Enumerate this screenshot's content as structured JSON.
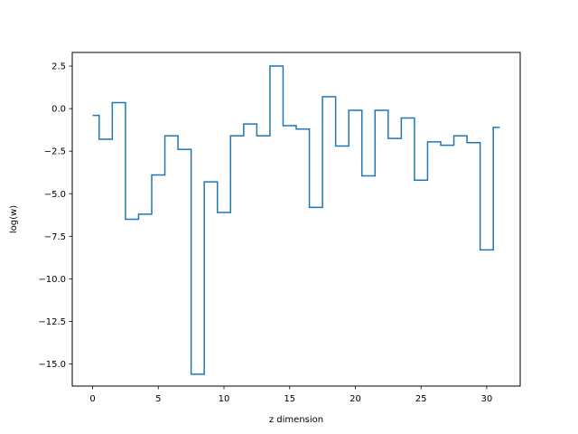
{
  "chart_data": {
    "type": "line",
    "drawstyle": "steps-mid",
    "xlabel": "z dimension",
    "ylabel": "log(w)",
    "xlim": [
      -1.55,
      32.55
    ],
    "ylim": [
      -16.3,
      3.3
    ],
    "grid": false,
    "xticks": [
      0,
      5,
      10,
      15,
      20,
      25,
      30
    ],
    "yticks": [
      2.5,
      0.0,
      -2.5,
      -5.0,
      -7.5,
      -10.0,
      -12.5,
      -15.0
    ],
    "xtick_labels": [
      "0",
      "5",
      "10",
      "15",
      "20",
      "25",
      "30"
    ],
    "ytick_labels": [
      "2.5",
      "0.0",
      "−2.5",
      "−5.0",
      "−7.5",
      "−10.0",
      "−12.5",
      "−15.0"
    ],
    "series": [
      {
        "color": "#1f77b4",
        "x": [
          0,
          1,
          2,
          3,
          4,
          5,
          6,
          7,
          8,
          9,
          10,
          11,
          12,
          13,
          14,
          15,
          16,
          17,
          18,
          19,
          20,
          21,
          22,
          23,
          24,
          25,
          26,
          27,
          28,
          29,
          30,
          31
        ],
        "y": [
          -0.4,
          -1.8,
          0.35,
          -6.5,
          -6.2,
          -3.9,
          -1.6,
          -2.4,
          -15.6,
          -4.3,
          -6.1,
          -1.6,
          -0.9,
          -1.6,
          2.5,
          -1.0,
          -1.2,
          -5.8,
          0.7,
          -2.2,
          -0.1,
          -3.95,
          -0.1,
          -1.75,
          -0.55,
          -4.2,
          -1.95,
          -2.15,
          -1.6,
          -2.0,
          -8.3,
          -1.1
        ]
      }
    ]
  }
}
